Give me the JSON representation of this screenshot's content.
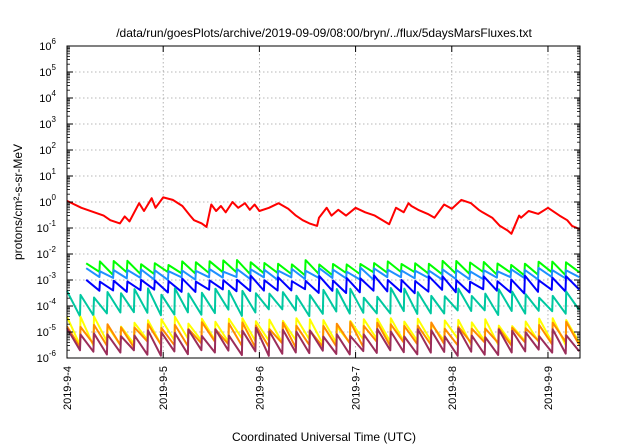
{
  "chart_data": {
    "type": "line",
    "title": "/data/run/goesPlots/archive/2019-09-09/08:00/bryn/../flux/5daysMarsFluxes.txt",
    "xlabel": "Coordinated Universal Time (UTC)",
    "ylabel": "protons/cm²-s-sr-MeV",
    "x_ticks": [
      {
        "x": 0,
        "label": "2019-9-4"
      },
      {
        "x": 1,
        "label": "2019-9-5"
      },
      {
        "x": 2,
        "label": "2019-9-6"
      },
      {
        "x": 3,
        "label": "2019-9-7"
      },
      {
        "x": 4,
        "label": "2019-9-8"
      },
      {
        "x": 5,
        "label": "2019-9-9"
      }
    ],
    "xlim": [
      "2019-9-4",
      "2019-9-9 08:00"
    ],
    "y_scale": "log",
    "ylim": [
      1e-06,
      1000000.0
    ],
    "y_ticks": [
      {
        "base": "10",
        "exp": "-6"
      },
      {
        "base": "10",
        "exp": "-5"
      },
      {
        "base": "10",
        "exp": "-4"
      },
      {
        "base": "10",
        "exp": "-3"
      },
      {
        "base": "10",
        "exp": "-2"
      },
      {
        "base": "10",
        "exp": "-1"
      },
      {
        "base": "10",
        "exp": "0"
      },
      {
        "base": "10",
        "exp": "1"
      },
      {
        "base": "10",
        "exp": "2"
      },
      {
        "base": "10",
        "exp": "3"
      },
      {
        "base": "10",
        "exp": "4"
      },
      {
        "base": "10",
        "exp": "5"
      },
      {
        "base": "10",
        "exp": "6"
      }
    ],
    "grid": true,
    "series": [
      {
        "color": "#ff0000",
        "x": [
          0,
          0.15,
          0.38,
          0.45,
          0.55,
          0.6,
          0.65,
          0.75,
          0.8,
          0.88,
          0.92,
          1.0,
          1.1,
          1.2,
          1.28,
          1.32,
          1.4,
          1.45,
          1.5,
          1.55,
          1.6,
          1.65,
          1.72,
          1.78,
          1.85,
          1.9,
          1.95,
          2.0,
          2.1,
          2.2,
          2.3,
          2.38,
          2.45,
          2.52,
          2.6,
          2.62,
          2.7,
          2.75,
          2.82,
          2.9,
          3.0,
          3.1,
          3.2,
          3.3,
          3.35,
          3.42,
          3.5,
          3.55,
          3.58,
          3.65,
          3.75,
          3.82,
          3.92,
          4.0,
          4.1,
          4.2,
          4.28,
          4.32,
          4.42,
          4.5,
          4.58,
          4.62,
          4.7,
          4.72,
          4.8,
          4.9,
          5.0,
          5.12,
          5.2,
          5.25,
          5.33
        ],
        "y": [
          1.1,
          0.6,
          0.3,
          0.2,
          0.15,
          0.28,
          0.18,
          0.9,
          0.45,
          1.4,
          0.6,
          1.5,
          1.2,
          0.7,
          0.3,
          0.2,
          0.15,
          0.11,
          0.8,
          0.45,
          0.7,
          0.4,
          1.0,
          0.6,
          0.9,
          0.5,
          0.8,
          0.45,
          0.6,
          0.9,
          0.55,
          0.3,
          0.2,
          0.15,
          0.12,
          0.25,
          0.6,
          0.3,
          0.5,
          0.3,
          0.6,
          0.4,
          0.3,
          0.18,
          0.14,
          0.6,
          0.4,
          0.9,
          0.7,
          0.5,
          0.35,
          0.25,
          0.8,
          0.55,
          1.2,
          0.9,
          0.5,
          0.4,
          0.25,
          0.12,
          0.08,
          0.06,
          0.3,
          0.25,
          0.45,
          0.35,
          0.6,
          0.3,
          0.2,
          0.12,
          0.09
        ]
      },
      {
        "color": "#00ff00",
        "seed": 11,
        "x_start": 0.2,
        "x_end": 5.33,
        "segments": 36,
        "low": 0.0015,
        "high": 0.006
      },
      {
        "color": "#1e90ff",
        "seed": 23,
        "x_start": 0.2,
        "x_end": 5.33,
        "segments": 36,
        "low": 0.001,
        "high": 0.003
      },
      {
        "color": "#0000ff",
        "seed": 37,
        "x_start": 0.2,
        "x_end": 5.33,
        "segments": 36,
        "low": 0.0003,
        "high": 0.0015
      },
      {
        "color": "#00c8a0",
        "seed": 53,
        "x_start": 0.0,
        "x_end": 5.33,
        "segments": 38,
        "low": 4e-05,
        "high": 0.0005
      },
      {
        "color": "#ffff00",
        "seed": 71,
        "x_start": 0.0,
        "x_end": 5.33,
        "segments": 38,
        "low": 3e-06,
        "high": 4e-05
      },
      {
        "color": "#ff8c00",
        "seed": 83,
        "x_start": 0.0,
        "x_end": 5.33,
        "segments": 38,
        "low": 2.5e-06,
        "high": 2.5e-05
      },
      {
        "color": "#9b2d5a",
        "seed": 97,
        "x_start": 0.0,
        "x_end": 5.33,
        "segments": 38,
        "low": 1.2e-06,
        "high": 1.5e-05
      }
    ]
  }
}
